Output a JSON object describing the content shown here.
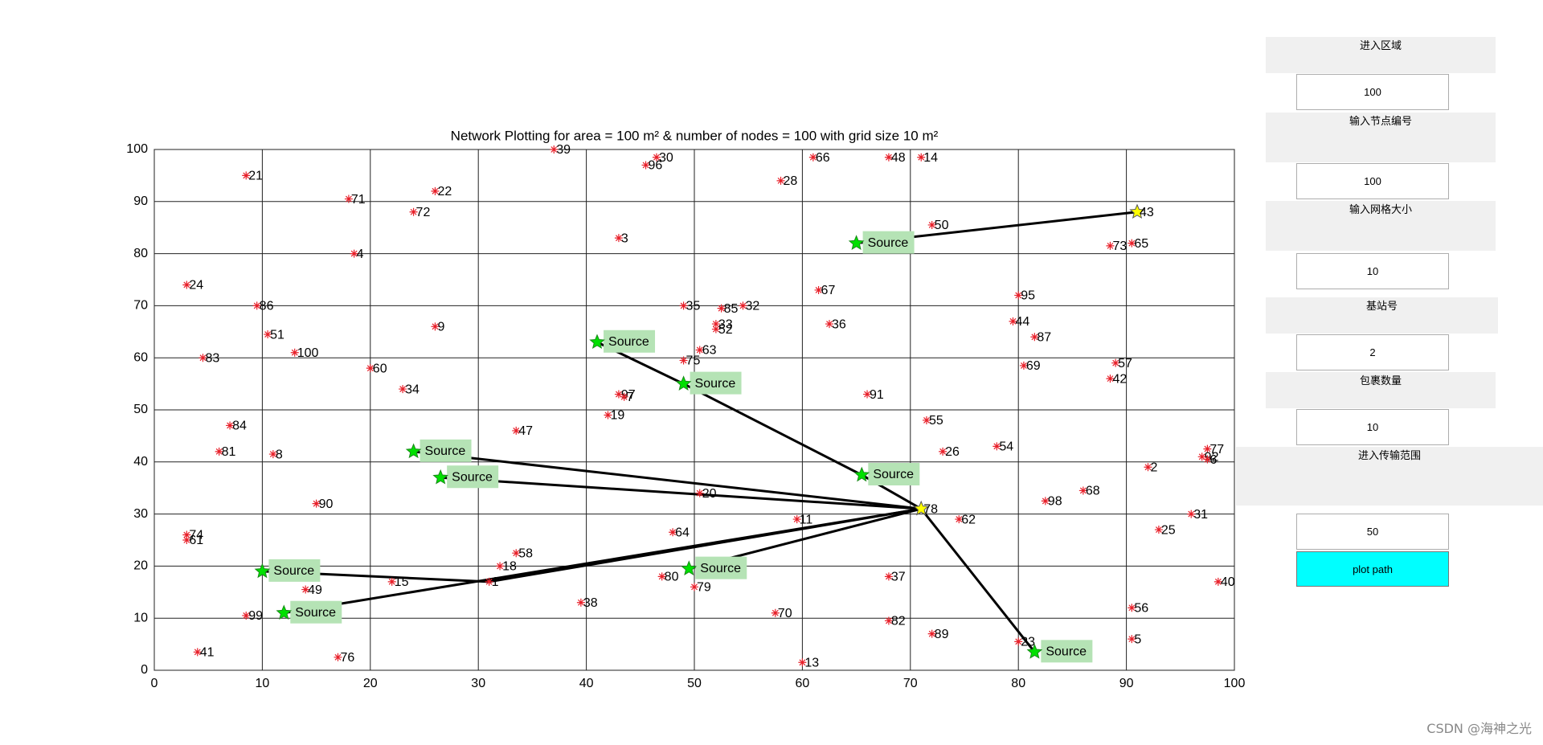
{
  "chart_data": {
    "type": "scatter",
    "title": "Network Plotting for area = 100 m² & number of nodes = 100 with grid size 10 m²",
    "xlim": [
      0,
      100
    ],
    "ylim": [
      0,
      100
    ],
    "xticks": [
      0,
      10,
      20,
      30,
      40,
      50,
      60,
      70,
      80,
      90,
      100
    ],
    "yticks": [
      0,
      10,
      20,
      30,
      40,
      50,
      60,
      70,
      80,
      90,
      100
    ],
    "grid": true,
    "nodes": {
      "color": "#e8202a",
      "labels": [
        "39",
        "30",
        "96",
        "66",
        "48",
        "14",
        "21",
        "28",
        "71",
        "22",
        "72",
        "50",
        "3",
        "4",
        "73",
        "65",
        "24",
        "67",
        "95",
        "86",
        "35",
        "85",
        "32",
        "51",
        "9",
        "33",
        "52",
        "36",
        "44",
        "87",
        "100",
        "63",
        "83",
        "75",
        "60",
        "57",
        "69",
        "34",
        "42",
        "97",
        "7",
        "91",
        "19",
        "55",
        "84",
        "47",
        "26",
        "54",
        "81",
        "8",
        "77",
        "92",
        "6",
        "2",
        "68",
        "98",
        "20",
        "90",
        "31",
        "11",
        "62",
        "74",
        "61",
        "64",
        "25",
        "58",
        "18",
        "1",
        "15",
        "49",
        "80",
        "79",
        "37",
        "40",
        "38",
        "70",
        "56",
        "99",
        "82",
        "89",
        "23",
        "5",
        "41",
        "76",
        "13"
      ],
      "x": [
        37,
        46.5,
        45.5,
        61,
        68,
        71,
        8.5,
        58,
        18,
        26,
        24,
        72,
        43,
        18.5,
        88.5,
        90.5,
        3,
        61.5,
        80,
        9.5,
        49,
        52.5,
        54.5,
        10.5,
        26,
        52,
        52,
        62.5,
        79.5,
        81.5,
        13,
        50.5,
        4.5,
        49,
        20,
        89,
        80.5,
        23,
        88.5,
        43,
        43.5,
        66,
        42,
        71.5,
        7,
        33.5,
        73,
        78,
        6,
        11,
        97.5,
        97,
        97.5,
        92,
        86,
        82.5,
        50.5,
        15,
        96,
        59.5,
        74.5,
        3,
        3,
        48,
        93,
        33.5,
        32,
        31,
        22,
        14,
        47,
        50,
        68,
        98.5,
        39.5,
        57.5,
        90.5,
        8.5,
        68,
        72,
        80,
        90.5,
        4,
        17,
        60
      ],
      "y": [
        100,
        98.5,
        97,
        98.5,
        98.5,
        98.5,
        95,
        94,
        90.5,
        92,
        88,
        85.5,
        83,
        80,
        81.5,
        82,
        74,
        73,
        72,
        70,
        70,
        69.5,
        70,
        64.5,
        66,
        66.5,
        65.5,
        66.5,
        67,
        64,
        61,
        61.5,
        60,
        59.5,
        58,
        59,
        58.5,
        54,
        56,
        53,
        52.5,
        53,
        49,
        48,
        47,
        46,
        42,
        43,
        42,
        41.5,
        42.5,
        41,
        40.5,
        39,
        34.5,
        32.5,
        34,
        32,
        30,
        29,
        29,
        26,
        25,
        26.5,
        27,
        22.5,
        20,
        17,
        17,
        15.5,
        18,
        16,
        18,
        17,
        13,
        11,
        12,
        10.5,
        9.5,
        7,
        5.5,
        6,
        3.5,
        2.5,
        1.5
      ]
    },
    "sources": {
      "name": "Source",
      "color": "#00e000",
      "x": [
        65,
        41,
        49,
        24,
        26.5,
        65.5,
        10,
        12,
        49.5,
        81.5
      ],
      "y": [
        82,
        63,
        55,
        42,
        37,
        37.5,
        19,
        11,
        19.5,
        3.5
      ]
    },
    "stations": {
      "color": "#ffff00",
      "labels": [
        "43",
        "78"
      ],
      "x": [
        91,
        71
      ],
      "y": [
        88,
        31
      ]
    },
    "paths": [
      {
        "x": [
          65,
          91
        ],
        "y": [
          82,
          88
        ]
      },
      {
        "x": [
          41,
          49,
          65.5,
          71
        ],
        "y": [
          63,
          55,
          37.5,
          31
        ]
      },
      {
        "x": [
          24,
          71
        ],
        "y": [
          42,
          31
        ]
      },
      {
        "x": [
          26.5,
          71
        ],
        "y": [
          37,
          31
        ]
      },
      {
        "x": [
          10,
          31,
          71
        ],
        "y": [
          19,
          17,
          31
        ]
      },
      {
        "x": [
          12,
          71
        ],
        "y": [
          11,
          31
        ]
      },
      {
        "x": [
          49.5,
          71
        ],
        "y": [
          19.5,
          31
        ]
      },
      {
        "x": [
          71,
          81.5
        ],
        "y": [
          31,
          3.5
        ]
      }
    ]
  },
  "panel": {
    "fields": [
      {
        "label": "进入区域",
        "value": "100"
      },
      {
        "label": "输入节点编号",
        "value": "100"
      },
      {
        "label": "输入网格大小",
        "value": "10"
      },
      {
        "label": "基站号",
        "value": "2"
      },
      {
        "label": "包裹数量",
        "value": "10"
      },
      {
        "label": "进入传输范围",
        "value": "50"
      }
    ],
    "button": "plot path"
  },
  "watermark": "CSDN @海神之光"
}
